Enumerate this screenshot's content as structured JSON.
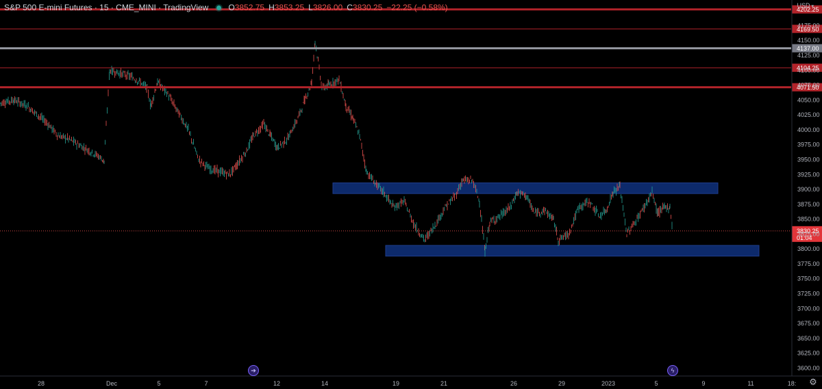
{
  "header": {
    "title": "S&P 500 E-mini Futures · 15 · CME_MINI · TradingView",
    "o_label": "O",
    "o_value": "3852.75",
    "h_label": "H",
    "h_value": "3853.25",
    "l_label": "L",
    "l_value": "3826.00",
    "c_label": "C",
    "c_value": "3830.25",
    "change": "−22.25 (−0.58%)"
  },
  "currency": "USD",
  "icons": {
    "status": "live-status-dot",
    "session_break_left": "arrow-circle-icon",
    "session_break_right": "lightning-icon",
    "settings": "gear-icon"
  },
  "colors": {
    "background": "#000000",
    "up": "#26a69a",
    "down": "#ef5350",
    "support_resistance_line": "#b2232a",
    "gray_level_line": "#9598a1",
    "zone_fill": "#0d2a6b",
    "price_label_bg": "#b2232a"
  },
  "chart_data": {
    "type": "candlestick",
    "symbol": "S&P 500 E-mini Futures",
    "interval": "15",
    "y_ticks": [
      "3600.00",
      "3625.00",
      "3650.00",
      "3675.00",
      "3700.00",
      "3725.00",
      "3750.00",
      "3775.00",
      "3800.00",
      "3825.00",
      "3850.00",
      "3875.00",
      "3900.00",
      "3925.00",
      "3950.00",
      "3975.00",
      "4000.00",
      "4025.00",
      "4050.00",
      "4075.00",
      "4100.00",
      "4125.00",
      "4150.00",
      "4175.00"
    ],
    "ylim": [
      3589,
      4218
    ],
    "x_ticks": [
      "28",
      "Dec",
      "5",
      "7",
      "12",
      "14",
      "19",
      "21",
      "26",
      "29",
      "2023",
      "5",
      "9",
      "11",
      "18:"
    ],
    "horizontal_levels": [
      {
        "price": 4202.25,
        "label": "4202.25",
        "style": "red-thick"
      },
      {
        "price": 4169.5,
        "label": "4169.50",
        "style": "red-thin"
      },
      {
        "price": 4137.0,
        "label": "4137.00",
        "style": "gray-thick"
      },
      {
        "price": 4104.25,
        "label": "4104.25",
        "style": "red-thin"
      },
      {
        "price": 4071.5,
        "label": "4071.50",
        "style": "red-thick"
      }
    ],
    "zones": [
      {
        "from_date": "Dec 16",
        "to_date": "Jan 9",
        "top": 3911,
        "bottom": 3893
      },
      {
        "from_date": "Dec 19",
        "to_date": "Jan 11",
        "top": 3806,
        "bottom": 3788
      }
    ],
    "last_price": {
      "label": "3830.25",
      "countdown": "01:04",
      "price": 3830.25
    },
    "price_path": [
      [
        0,
        4045
      ],
      [
        20,
        4050
      ],
      [
        40,
        4040
      ],
      [
        55,
        4025
      ],
      [
        70,
        4010
      ],
      [
        85,
        3990
      ],
      [
        100,
        3985
      ],
      [
        115,
        3975
      ],
      [
        130,
        3965
      ],
      [
        145,
        3955
      ],
      [
        152,
        3948
      ],
      [
        160,
        4100
      ],
      [
        175,
        4095
      ],
      [
        190,
        4090
      ],
      [
        205,
        4080
      ],
      [
        215,
        4070
      ],
      [
        220,
        4040
      ],
      [
        230,
        4080
      ],
      [
        245,
        4060
      ],
      [
        260,
        4030
      ],
      [
        275,
        4000
      ],
      [
        290,
        3950
      ],
      [
        305,
        3935
      ],
      [
        320,
        3930
      ],
      [
        335,
        3925
      ],
      [
        345,
        3940
      ],
      [
        360,
        3965
      ],
      [
        370,
        3990
      ],
      [
        385,
        4010
      ],
      [
        395,
        3990
      ],
      [
        405,
        3970
      ],
      [
        420,
        3985
      ],
      [
        435,
        4020
      ],
      [
        445,
        4050
      ],
      [
        455,
        4080
      ],
      [
        460,
        4150
      ],
      [
        470,
        4070
      ],
      [
        480,
        4075
      ],
      [
        495,
        4085
      ],
      [
        505,
        4040
      ],
      [
        515,
        4020
      ],
      [
        525,
        3990
      ],
      [
        535,
        3930
      ],
      [
        548,
        3910
      ],
      [
        560,
        3895
      ],
      [
        575,
        3870
      ],
      [
        590,
        3880
      ],
      [
        605,
        3840
      ],
      [
        620,
        3815
      ],
      [
        635,
        3840
      ],
      [
        650,
        3870
      ],
      [
        665,
        3890
      ],
      [
        675,
        3915
      ],
      [
        690,
        3915
      ],
      [
        700,
        3880
      ],
      [
        708,
        3795
      ],
      [
        715,
        3845
      ],
      [
        730,
        3855
      ],
      [
        745,
        3870
      ],
      [
        755,
        3895
      ],
      [
        768,
        3890
      ],
      [
        780,
        3860
      ],
      [
        795,
        3865
      ],
      [
        808,
        3850
      ],
      [
        815,
        3815
      ],
      [
        830,
        3825
      ],
      [
        845,
        3870
      ],
      [
        860,
        3880
      ],
      [
        875,
        3855
      ],
      [
        885,
        3865
      ],
      [
        895,
        3895
      ],
      [
        905,
        3905
      ],
      [
        915,
        3825
      ],
      [
        930,
        3850
      ],
      [
        945,
        3880
      ],
      [
        952,
        3895
      ],
      [
        960,
        3860
      ],
      [
        970,
        3870
      ],
      [
        978,
        3870
      ],
      [
        982,
        3830
      ]
    ]
  }
}
